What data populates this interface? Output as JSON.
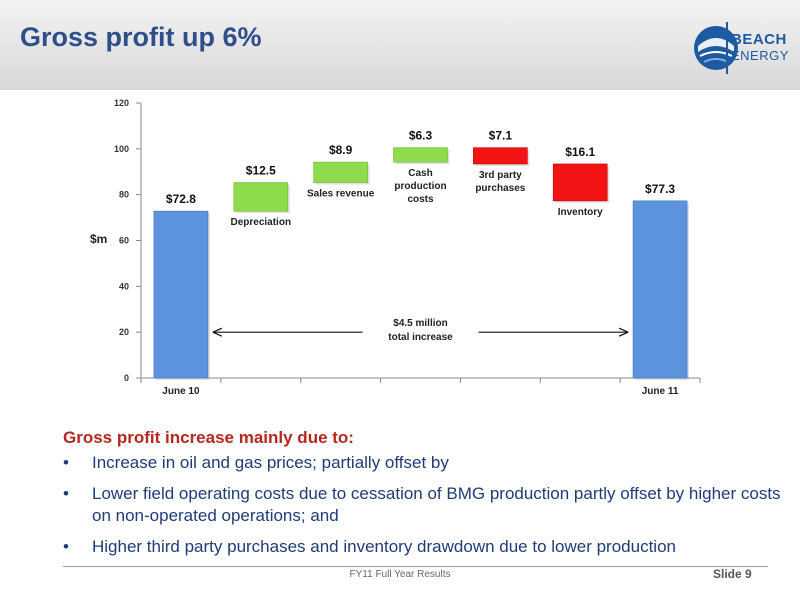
{
  "header": {
    "title": "Gross profit up 6%"
  },
  "logo": {
    "line1": "BEACH",
    "line2": "ENERGY"
  },
  "chart_data": {
    "type": "bar",
    "subtype": "waterfall",
    "ylabel": "$m",
    "ylim": [
      0,
      120
    ],
    "yticks": [
      0,
      20,
      40,
      60,
      80,
      100,
      120
    ],
    "bars": [
      {
        "label": "June 10",
        "value_label": "$72.8",
        "base": 0,
        "top": 72.8,
        "kind": "total"
      },
      {
        "label": "Depreciation",
        "value_label": "$12.5",
        "base": 72.8,
        "top": 85.3,
        "kind": "increase"
      },
      {
        "label": "Sales revenue",
        "value_label": "$8.9",
        "base": 85.3,
        "top": 94.2,
        "kind": "increase"
      },
      {
        "label": "Cash production costs",
        "value_label": "$6.3",
        "base": 94.2,
        "top": 100.5,
        "kind": "increase"
      },
      {
        "label": "3rd party purchases",
        "value_label": "$7.1",
        "base": 93.4,
        "top": 100.5,
        "kind": "decrease"
      },
      {
        "label": "Inventory",
        "value_label": "$16.1",
        "base": 77.3,
        "top": 93.4,
        "kind": "decrease"
      },
      {
        "label": "June 11",
        "value_label": "$77.3",
        "base": 0,
        "top": 77.3,
        "kind": "total"
      }
    ],
    "annotation": {
      "line1": "$4.5 million",
      "line2": "total increase",
      "y": 20
    },
    "colors": {
      "total": "#5b93dc",
      "increase": "#8edc4c",
      "decrease": "#f21414"
    },
    "legend": "none",
    "grid": false
  },
  "body": {
    "subhead": "Gross profit increase mainly due to:",
    "bullets": [
      "Increase in oil and gas prices; partially offset by",
      "Lower field operating costs due to cessation of BMG production partly offset by higher costs on non-operated operations; and",
      "Higher third party purchases and inventory drawdown due to lower production"
    ],
    "bullet_glyph": "•"
  },
  "footer": {
    "center": "FY11 Full Year Results",
    "slide": "Slide 9"
  }
}
